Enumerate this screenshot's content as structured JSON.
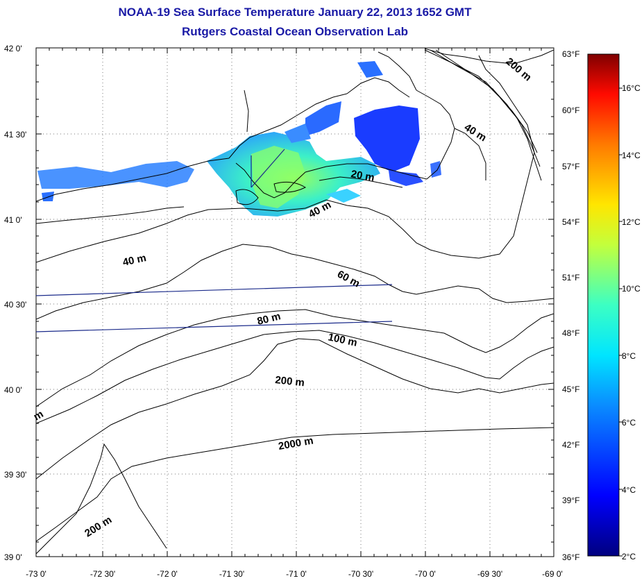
{
  "title": "NOAA-19 Sea Surface Temperature January 22, 2013 1652 GMT",
  "subtitle": "Rutgers Coastal Ocean Observation Lab",
  "latitude_labels": [
    "42 0'",
    "41 30'",
    "41 0'",
    "40 30'",
    "40 0'",
    "39 30'",
    "39 0'"
  ],
  "longitude_labels": [
    "-73 0'",
    "-72 30'",
    "-72 0'",
    "-71 30'",
    "-71 0'",
    "-70 30'",
    "-70 0'",
    "-69 30'",
    "-69 0'"
  ],
  "contour_labels": [
    "200 m",
    "40 m",
    "20 m",
    "40 m",
    "40 m",
    "60 m",
    "80 m",
    "100 m",
    "200 m",
    "2000 m",
    "200 m",
    "m"
  ],
  "fahrenheit_labels": [
    "63°F",
    "60°F",
    "57°F",
    "54°F",
    "51°F",
    "48°F",
    "45°F",
    "42°F",
    "39°F",
    "36°F"
  ],
  "celsius_labels": [
    "16°C",
    "14°C",
    "12°C",
    "10°C",
    "8°C",
    "6°C",
    "4°C",
    "2°C"
  ],
  "colors": {
    "title": "#1a1aa6",
    "coast": "#000000",
    "track": "#1a2a8a"
  }
}
